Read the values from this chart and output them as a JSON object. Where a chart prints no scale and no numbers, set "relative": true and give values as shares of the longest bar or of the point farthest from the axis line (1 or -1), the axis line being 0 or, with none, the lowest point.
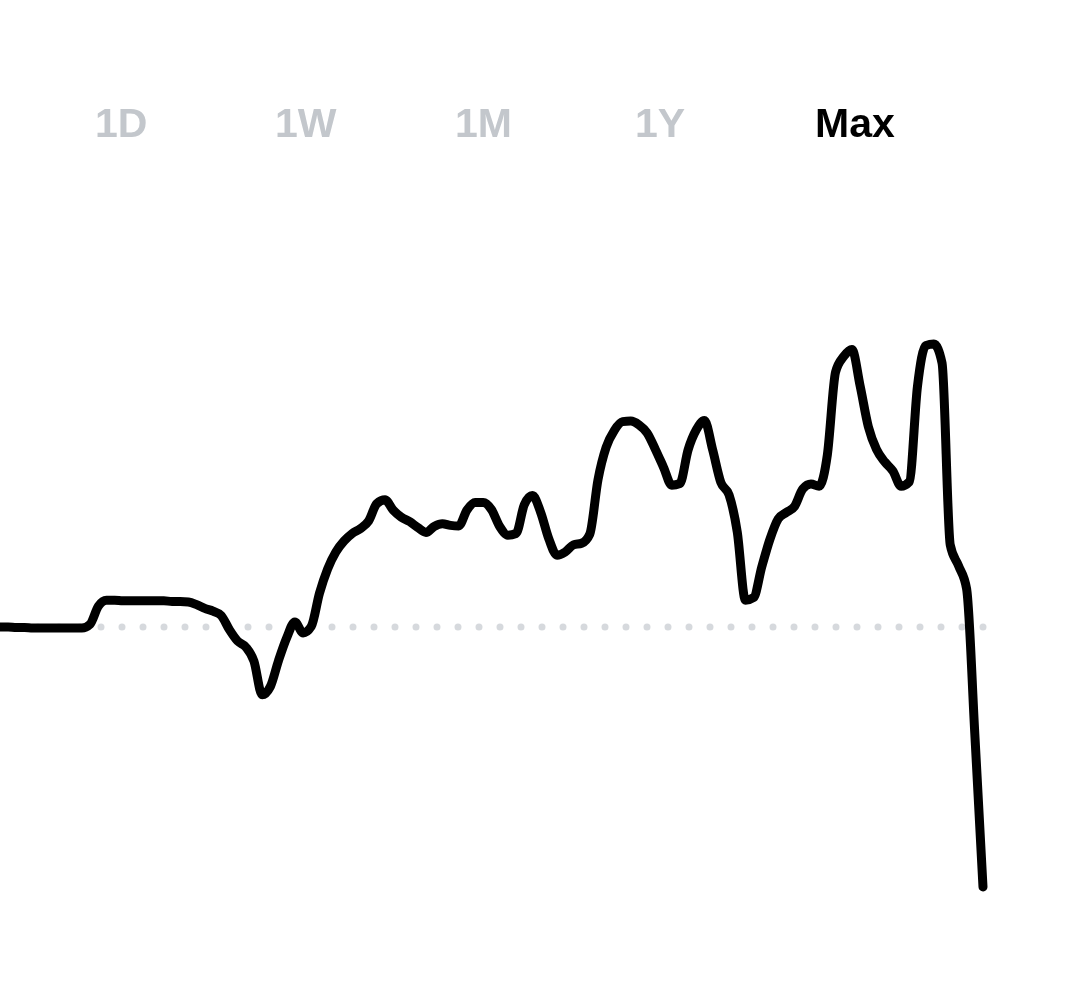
{
  "chart_data": {
    "type": "line",
    "relative": true,
    "categories": [
      null,
      null,
      null,
      null,
      null,
      null,
      null,
      null,
      null,
      null,
      null,
      null,
      null,
      null,
      null,
      null,
      null,
      null,
      null,
      null,
      null,
      null,
      null,
      null,
      null,
      null,
      null,
      null,
      null,
      null,
      null,
      null,
      null,
      null,
      null,
      null,
      null,
      null,
      null,
      null,
      null,
      null,
      null,
      null,
      null,
      null,
      null,
      null,
      null,
      null,
      null,
      null,
      null,
      null,
      null,
      null,
      null,
      null,
      null,
      null,
      null,
      null,
      null,
      null,
      null,
      null,
      null,
      null,
      null,
      null,
      null,
      null,
      null,
      null,
      null,
      null,
      null,
      null,
      null,
      null,
      null,
      null,
      null,
      null,
      null,
      null,
      null,
      null,
      null,
      null,
      null,
      null,
      null,
      null,
      null,
      null,
      null,
      null,
      null,
      null,
      null,
      null,
      null,
      null,
      null,
      null,
      null,
      null,
      null,
      null,
      null,
      null,
      null,
      null,
      null,
      null,
      null,
      null,
      null,
      null,
      null
    ],
    "series": [
      {
        "color": "#000000",
        "values": [
          0.479,
          0.479,
          0.478,
          0.478,
          0.477,
          0.477,
          0.477,
          0.477,
          0.477,
          0.477,
          0.477,
          0.484,
          0.517,
          0.528,
          0.528,
          0.527,
          0.527,
          0.527,
          0.527,
          0.527,
          0.527,
          0.526,
          0.526,
          0.525,
          0.52,
          0.513,
          0.508,
          0.5,
          0.474,
          0.453,
          0.442,
          0.416,
          0.354,
          0.369,
          0.417,
          0.459,
          0.488,
          0.468,
          0.48,
          0.541,
          0.586,
          0.617,
          0.637,
          0.651,
          0.66,
          0.674,
          0.706,
          0.713,
          0.694,
          0.681,
          0.673,
          0.662,
          0.653,
          0.664,
          0.669,
          0.666,
          0.665,
          0.694,
          0.708,
          0.708,
          0.695,
          0.664,
          0.648,
          0.651,
          0.704,
          0.721,
          0.69,
          0.641,
          0.611,
          0.617,
          0.63,
          0.633,
          0.65,
          0.75,
          0.81,
          0.841,
          0.857,
          0.858,
          0.851,
          0.836,
          0.806,
          0.773,
          0.74,
          0.743,
          0.805,
          0.842,
          0.859,
          0.805,
          0.745,
          0.722,
          0.654,
          0.528,
          0.533,
          0.59,
          0.641,
          0.678,
          0.69,
          0.701,
          0.733,
          0.742,
          0.738,
          0.796,
          0.948,
          0.977,
          0.99,
          0.923,
          0.848,
          0.806,
          0.783,
          0.766,
          0.738,
          0.746,
          0.922,
          0.997,
          1.0,
          0.965,
          0.63,
          0.592,
          0.549,
          0.282,
          0.0
        ]
      }
    ],
    "ref_lines": [
      {
        "axis": "y",
        "value": 0.479,
        "color": "#d6d9dd",
        "line_style": "dotted"
      }
    ],
    "annotations": [
      "1D",
      "1W",
      "1M",
      "1Y",
      "Max"
    ]
  }
}
